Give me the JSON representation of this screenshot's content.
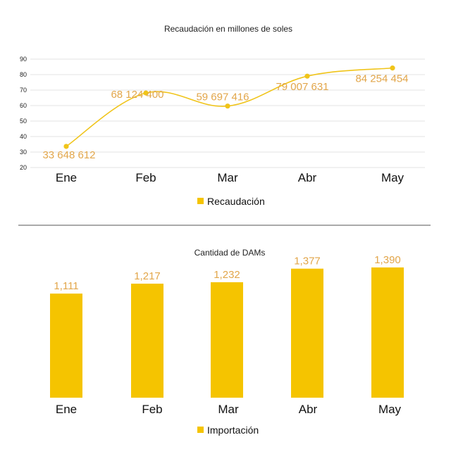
{
  "chart_data": [
    {
      "type": "line",
      "title": "Recaudación en millones de soles",
      "categories": [
        "Ene",
        "Feb",
        "Mar",
        "Abr",
        "May"
      ],
      "values": [
        33.648612,
        68.1244,
        59.697416,
        79.007631,
        84.254454
      ],
      "data_labels": [
        "33 648 612",
        "68 124 400",
        "59 697 416",
        "79 007 631",
        "84 254 454"
      ],
      "yticks": [
        "20",
        "30",
        "40",
        "50",
        "60",
        "70",
        "80",
        "90"
      ],
      "ylim": [
        20,
        90
      ],
      "grid": true,
      "legend": "Recaudación",
      "legend_position": "bottom",
      "xlabel": "",
      "ylabel": ""
    },
    {
      "type": "bar",
      "title": "Cantidad de DAMs",
      "categories": [
        "Ene",
        "Feb",
        "Mar",
        "Abr",
        "May"
      ],
      "values": [
        1111,
        1217,
        1232,
        1377,
        1390
      ],
      "data_labels": [
        "1,111",
        "1,217",
        "1,232",
        "1,377",
        "1,390"
      ],
      "ylim": [
        0,
        1600
      ],
      "grid": false,
      "legend": "Importación",
      "legend_position": "bottom",
      "xlabel": "",
      "ylabel": ""
    }
  ],
  "colors": {
    "series": "#f5c400",
    "line": "#f0c419",
    "label": "#e2a64a",
    "grid": "#e3e3e3",
    "divider": "#777777"
  }
}
